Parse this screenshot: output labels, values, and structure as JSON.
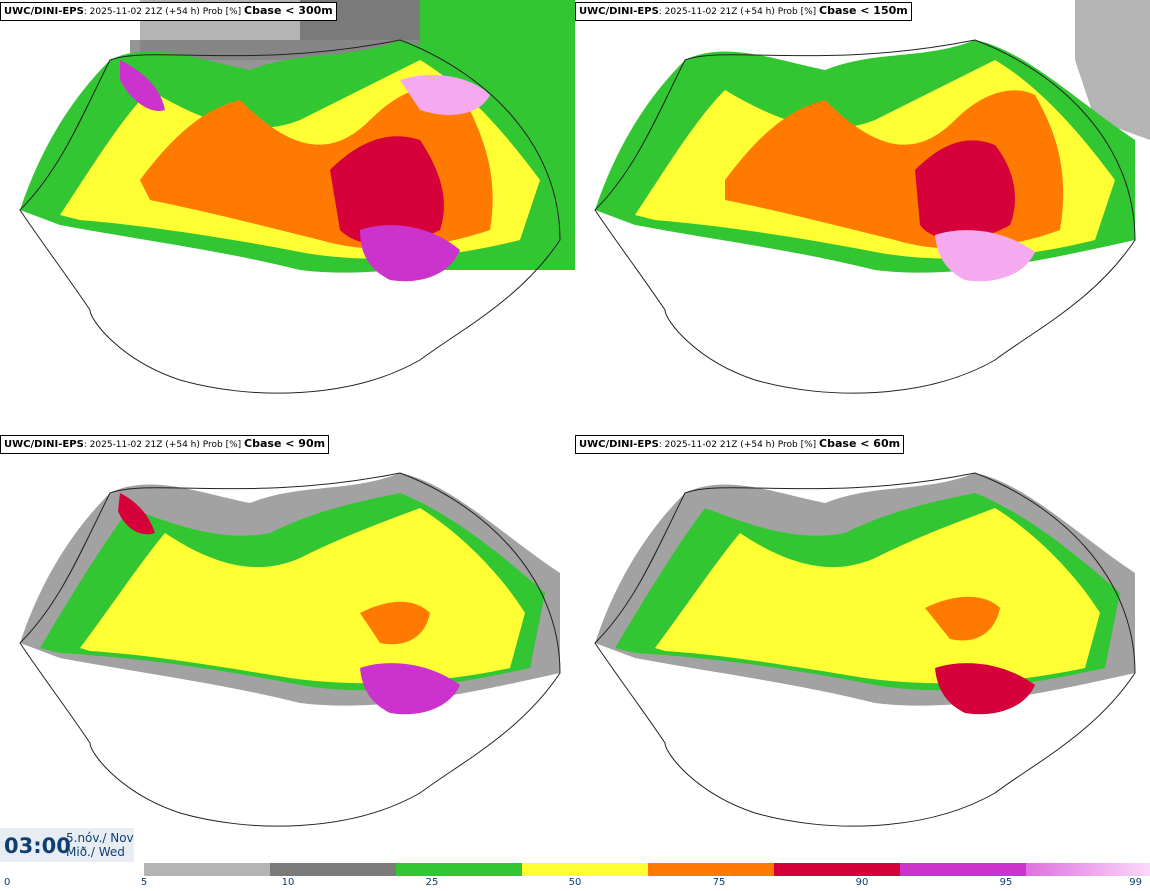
{
  "panels": [
    {
      "model": "UWC/DINI-EPS",
      "run": ": 2025-11-02 21Z (+54 h) Prob [%]",
      "threshold": "Cbase < 300m"
    },
    {
      "model": "UWC/DINI-EPS",
      "run": ": 2025-11-02 21Z (+54 h) Prob [%]",
      "threshold": "Cbase < 150m"
    },
    {
      "model": "UWC/DINI-EPS",
      "run": ": 2025-11-02 21Z (+54 h) Prob [%]",
      "threshold": "Cbase < 90m"
    },
    {
      "model": "UWC/DINI-EPS",
      "run": ": 2025-11-02 21Z (+54 h) Prob [%]",
      "threshold": "Cbase < 60m"
    }
  ],
  "valid_time": {
    "time": "03:00",
    "date_line1": "5.nóv./ Nov",
    "date_line2": "Mið./ Wed"
  },
  "legend": {
    "ticks": [
      "0",
      "5",
      "10",
      "25",
      "50",
      "75",
      "90",
      "95",
      "99"
    ],
    "colors": [
      "#b4b4b4",
      "#7a7a7a",
      "#33c633",
      "#ffff33",
      "#ff7a00",
      "#d6003a",
      "#cc33cc",
      "#f5aaf0"
    ]
  }
}
